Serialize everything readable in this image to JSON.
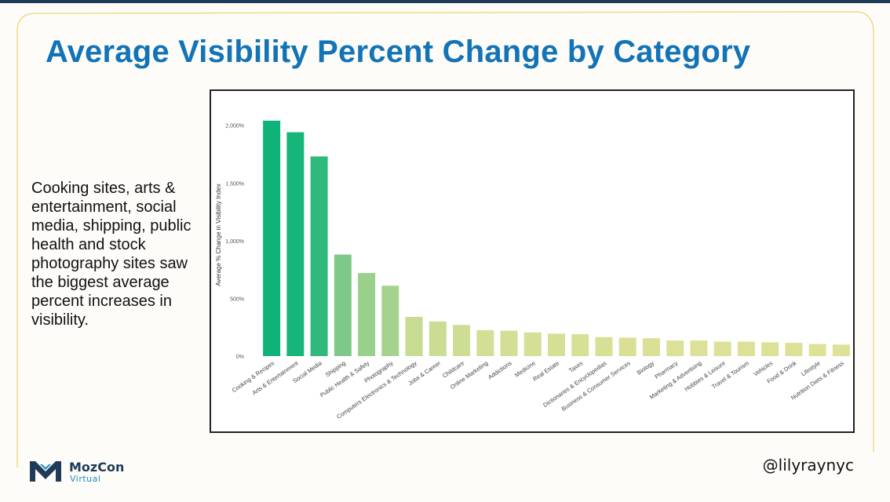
{
  "slide": {
    "title": "Average Visibility Percent Change by Category",
    "summary": "Cooking sites, arts & entertainment, social media, shipping, public health and stock photography sites saw the biggest average percent increases in visibility.",
    "handle": "@lilyraynyc"
  },
  "brand": {
    "name": "MozCon",
    "sub": "Virtual",
    "dark_color": "#1f3b57",
    "accent_color": "#1f8fbf",
    "title_color": "#1273b6",
    "frame_color": "#f0d98a"
  },
  "chart_data": {
    "type": "bar",
    "title": "",
    "xlabel": "",
    "ylabel": "Average % Change in Visibility Index",
    "ylim": [
      0,
      2100
    ],
    "yticks": [
      0,
      500,
      1000,
      1500,
      2000
    ],
    "ytick_labels": [
      "0%",
      "500%",
      "1,000%",
      "1,500%",
      "2,000%"
    ],
    "categories": [
      "Cooking & Recipes",
      "Arts & Entertainment",
      "Social Media",
      "Shipping",
      "Public Health & Safety",
      "Photography",
      "Computers Electronics & Technology",
      "Jobs & Career",
      "Childcare",
      "Online Marketing",
      "Addictions",
      "Medicine",
      "Real Estate",
      "Taxes",
      "Dictionaries & Encyclopedias",
      "Business & Consumer Services",
      "Biology",
      "Pharmacy",
      "Marketing & Advertising",
      "Hobbies & Leisure",
      "Travel & Tourism",
      "Vehicles",
      "Food & Drink",
      "Lifestyle",
      "Nutrition Diets & Fitness"
    ],
    "values": [
      2040,
      1940,
      1730,
      880,
      720,
      610,
      340,
      300,
      270,
      225,
      220,
      205,
      195,
      190,
      165,
      160,
      155,
      135,
      135,
      125,
      125,
      120,
      115,
      105,
      100
    ],
    "colors": [
      "#0fb378",
      "#16b67a",
      "#2fb97c",
      "#7ec98a",
      "#99d08c",
      "#a5d38e",
      "#c7db92",
      "#cbdc93",
      "#cedd94",
      "#d3df95",
      "#d4df95",
      "#d5df95",
      "#d6e095",
      "#d7e096",
      "#d8e096",
      "#d9e096",
      "#dae196",
      "#dbe196",
      "#dbe196",
      "#dce197",
      "#dce197",
      "#dde197",
      "#dde197",
      "#dee297",
      "#dee297"
    ]
  }
}
